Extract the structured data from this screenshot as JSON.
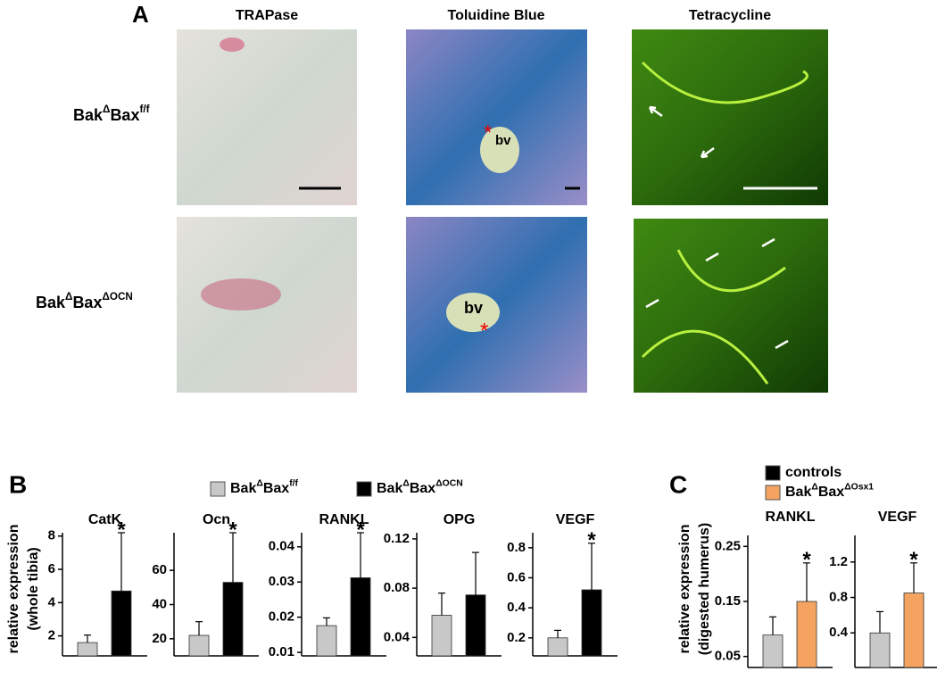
{
  "panel_a": {
    "label": "A",
    "columns": [
      "TRAPase",
      "Toluidine Blue",
      "Tetracycline"
    ],
    "rows": [
      [
        "Bak",
        "Δ",
        "Bax",
        "f/f"
      ],
      [
        "Bak",
        "Δ",
        "Bax",
        "ΔOCN"
      ]
    ],
    "annotations": [
      "bv",
      "bv"
    ]
  },
  "panel_b": {
    "label": "B",
    "ylabel": [
      "relative expression",
      "(whole tibia)"
    ],
    "legend": [
      {
        "name": [
          "Bak",
          "Δ",
          "Bax",
          "f/f"
        ],
        "color": "#c8c8c8"
      },
      {
        "name": [
          "Bak",
          "Δ",
          "Bax",
          "ΔOCN"
        ],
        "color": "#000000"
      }
    ]
  },
  "panel_c": {
    "label": "C",
    "ylabel": [
      "relative expression",
      "(digested humerus)"
    ],
    "legend": [
      {
        "name": [
          "controls"
        ],
        "color": "#000000"
      },
      {
        "name": [
          "Bak",
          "Δ",
          "Bax",
          "ΔOsx1"
        ],
        "color": "#f4a460"
      }
    ]
  },
  "chart_data": [
    {
      "type": "bar",
      "title": "CatK",
      "ylim": [
        0.8,
        8.2
      ],
      "yticks": [
        2,
        4,
        6,
        8
      ],
      "annotation": "*",
      "series": [
        {
          "color": "#c8c8c8",
          "values": [
            1.6
          ],
          "errors": [
            0.45
          ]
        },
        {
          "color": "#000000",
          "values": [
            4.7
          ],
          "errors": [
            3.5
          ]
        }
      ]
    },
    {
      "type": "bar",
      "title": "Ocn",
      "ylim": [
        10,
        82
      ],
      "yticks": [
        20,
        40,
        60
      ],
      "annotation": "*",
      "series": [
        {
          "color": "#c8c8c8",
          "values": [
            22
          ],
          "errors": [
            8
          ]
        },
        {
          "color": "#000000",
          "values": [
            53
          ],
          "errors": [
            29
          ]
        }
      ]
    },
    {
      "type": "bar",
      "title": "RANKL",
      "ylim": [
        0.009,
        0.044
      ],
      "yticks": [
        0.01,
        0.02,
        0.03,
        0.04
      ],
      "annotation": "*",
      "series": [
        {
          "color": "#c8c8c8",
          "values": [
            0.0176
          ],
          "errors": [
            0.0022
          ]
        },
        {
          "color": "#000000",
          "values": [
            0.0312
          ],
          "errors": [
            0.0128
          ]
        }
      ]
    },
    {
      "type": "bar",
      "title": "OPG",
      "ylim": [
        0.025,
        0.125
      ],
      "yticks": [
        0.04,
        0.08,
        0.12
      ],
      "series": [
        {
          "color": "#c8c8c8",
          "values": [
            0.058
          ],
          "errors": [
            0.018
          ]
        },
        {
          "color": "#000000",
          "values": [
            0.0745
          ],
          "errors": [
            0.0345
          ]
        }
      ]
    },
    {
      "type": "bar",
      "title": "VEGF",
      "ylim": [
        0.08,
        0.9
      ],
      "yticks": [
        0.2,
        0.4,
        0.6,
        0.8
      ],
      "annotation": "*",
      "series": [
        {
          "color": "#c8c8c8",
          "values": [
            0.2
          ],
          "errors": [
            0.05
          ]
        },
        {
          "color": "#000000",
          "values": [
            0.52
          ],
          "errors": [
            0.31
          ]
        }
      ]
    },
    {
      "type": "bar",
      "title": "RANKL",
      "ylim": [
        0.03,
        0.27
      ],
      "yticks": [
        0.05,
        0.15,
        0.25
      ],
      "annotation": "*",
      "series": [
        {
          "color": "#c8c8c8",
          "values": [
            0.089
          ],
          "errors": [
            0.033
          ]
        },
        {
          "color": "#f4a460",
          "values": [
            0.15
          ],
          "errors": [
            0.07
          ]
        }
      ]
    },
    {
      "type": "bar",
      "title": "VEGF",
      "ylim": [
        0.01,
        1.5
      ],
      "yticks": [
        0.4,
        0.8,
        1.2
      ],
      "annotation": "*",
      "series": [
        {
          "color": "#c8c8c8",
          "values": [
            0.4
          ],
          "errors": [
            0.24
          ]
        },
        {
          "color": "#f4a460",
          "values": [
            0.85
          ],
          "errors": [
            0.34
          ]
        }
      ]
    }
  ]
}
